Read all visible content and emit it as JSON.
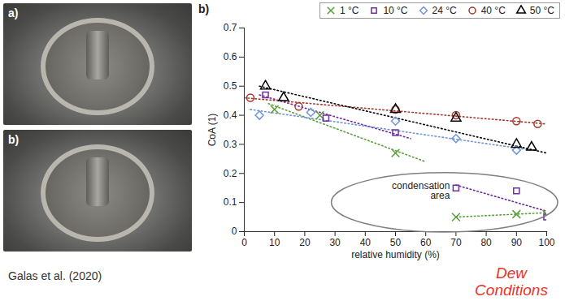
{
  "chart_data": {
    "type": "scatter",
    "title": "b)",
    "x_label": "relative humidity (%)",
    "y_label": "CoA (1)",
    "xlim": [
      0,
      100
    ],
    "xticks": [
      0,
      10,
      20,
      30,
      40,
      50,
      60,
      70,
      80,
      90,
      100
    ],
    "ylim": [
      0,
      0.7
    ],
    "yticks": [
      0,
      0.1,
      0.2,
      0.3,
      0.4,
      0.5,
      0.6,
      0.7
    ],
    "grid": false,
    "legend": "top",
    "series": [
      {
        "name": "1 °C",
        "color": "#5a9e3a",
        "marker": "x",
        "line_style": "dotted",
        "x": [
          10,
          25,
          50,
          70,
          90,
          100
        ],
        "values": [
          0.42,
          0.4,
          0.27,
          0.05,
          0.06,
          0.06
        ],
        "trends": [
          {
            "x": [
              8,
              60
            ],
            "values": [
              0.44,
              0.24
            ]
          },
          {
            "x": [
              70,
              100
            ],
            "values": [
              0.05,
              0.065
            ]
          }
        ]
      },
      {
        "name": "10 °C",
        "color": "#7030a0",
        "marker": "square",
        "line_style": "dotted",
        "x": [
          7,
          27,
          50,
          70,
          90,
          100
        ],
        "values": [
          0.47,
          0.39,
          0.34,
          0.15,
          0.14,
          0.05
        ],
        "trends": [
          {
            "x": [
              5,
              55
            ],
            "values": [
              0.47,
              0.32
            ]
          },
          {
            "x": [
              70,
              100
            ],
            "values": [
              0.16,
              0.07
            ]
          }
        ]
      },
      {
        "name": "24 °C",
        "color": "#6f93d8",
        "marker": "diamond",
        "line_style": "dotted",
        "x": [
          5,
          22,
          50,
          70,
          90
        ],
        "values": [
          0.4,
          0.41,
          0.38,
          0.32,
          0.28
        ],
        "trends": [
          {
            "x": [
              2,
              95
            ],
            "values": [
              0.42,
              0.28
            ]
          }
        ]
      },
      {
        "name": "40 °C",
        "color": "#a5362b",
        "marker": "circle",
        "line_style": "dotted",
        "x": [
          2,
          18,
          50,
          70,
          90,
          97
        ],
        "values": [
          0.46,
          0.43,
          0.42,
          0.4,
          0.38,
          0.37
        ],
        "trends": [
          {
            "x": [
              0,
              100
            ],
            "values": [
              0.46,
              0.37
            ]
          }
        ]
      },
      {
        "name": "50 °C",
        "color": "#000000",
        "marker": "triangle",
        "line_style": "dotted",
        "x": [
          7,
          13,
          50,
          70,
          90,
          95
        ],
        "values": [
          0.5,
          0.46,
          0.42,
          0.39,
          0.3,
          0.29
        ],
        "trends": [
          {
            "x": [
              5,
              100
            ],
            "values": [
              0.5,
              0.27
            ]
          }
        ]
      }
    ],
    "annotations": [
      {
        "text": "condensation area",
        "x": 68,
        "y": 0.14
      }
    ]
  },
  "photos": [
    {
      "label": "a)"
    },
    {
      "label": "b)"
    }
  ],
  "caption": "Galas et al. (2020)",
  "note": "Dew Conditions"
}
